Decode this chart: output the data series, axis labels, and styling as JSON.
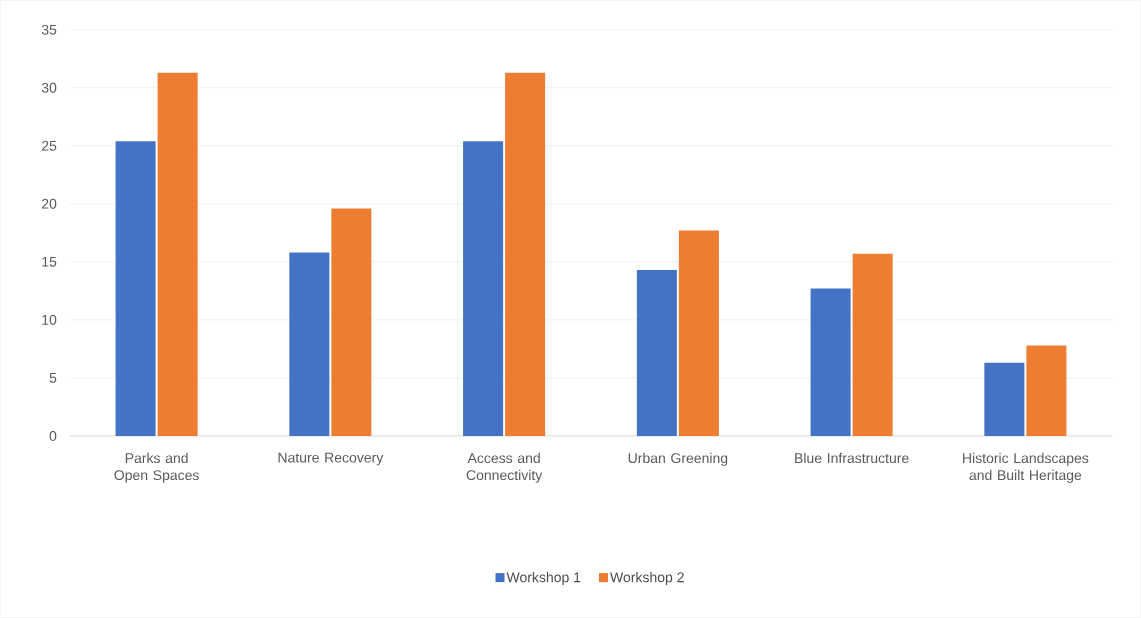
{
  "chart_data": {
    "type": "bar",
    "categories": [
      "Parks and Open Spaces",
      "Nature Recovery",
      "Access and Connectivity",
      "Urban Greening",
      "Blue Infrastructure",
      "Historic Landscapes and Built Heritage"
    ],
    "series": [
      {
        "name": "Workshop 1",
        "color": "#4472c4",
        "values": [
          25.4,
          15.8,
          25.4,
          14.3,
          12.7,
          6.3
        ]
      },
      {
        "name": "Workshop 2",
        "color": "#ed7d31",
        "values": [
          31.3,
          19.6,
          31.3,
          17.7,
          15.7,
          7.8
        ]
      }
    ],
    "ylim": [
      0,
      35
    ],
    "yticks": [
      0,
      5,
      10,
      15,
      20,
      25,
      30,
      35
    ],
    "grid": "y",
    "legend": "bottom"
  }
}
